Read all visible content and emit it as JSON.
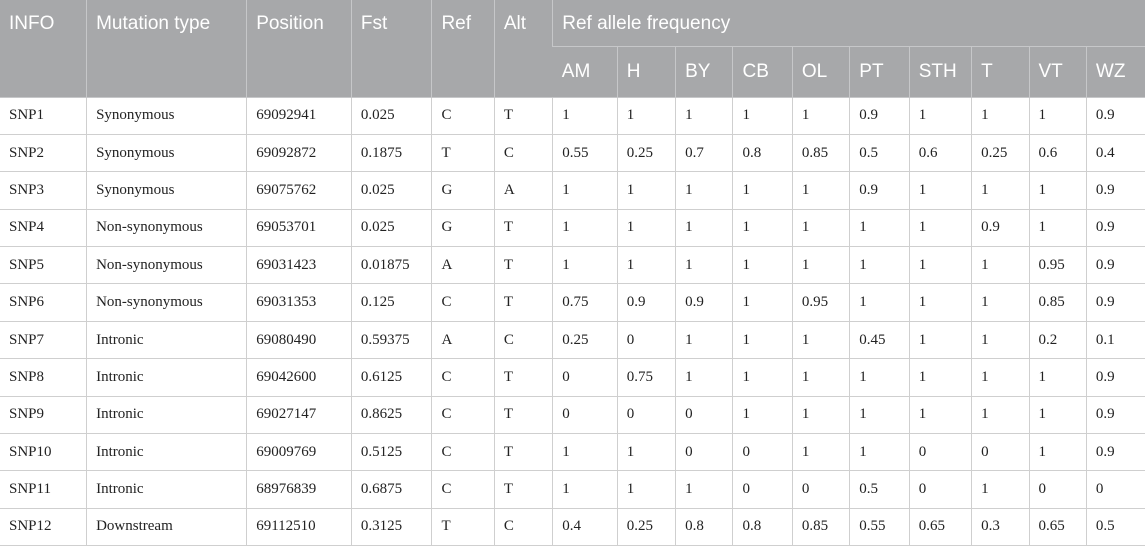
{
  "headers": {
    "info": "INFO",
    "mutation_type": "Mutation type",
    "position": "Position",
    "fst": "Fst",
    "ref": "Ref",
    "alt": "Alt",
    "freq_group": "Ref allele frequency",
    "populations": [
      "AM",
      "H",
      "BY",
      "CB",
      "OL",
      "PT",
      "STH",
      "T",
      "VT",
      "WZ"
    ]
  },
  "rows": [
    {
      "info": "SNP1",
      "mutation": "Synonymous",
      "position": "69092941",
      "fst": "0.025",
      "ref": "C",
      "alt": "T",
      "freq": [
        "1",
        "1",
        "1",
        "1",
        "1",
        "0.9",
        "1",
        "1",
        "1",
        "0.9"
      ]
    },
    {
      "info": "SNP2",
      "mutation": "Synonymous",
      "position": "69092872",
      "fst": "0.1875",
      "ref": "T",
      "alt": "C",
      "freq": [
        "0.55",
        "0.25",
        "0.7",
        "0.8",
        "0.85",
        "0.5",
        "0.6",
        "0.25",
        "0.6",
        "0.4"
      ]
    },
    {
      "info": "SNP3",
      "mutation": "Synonymous",
      "position": "69075762",
      "fst": "0.025",
      "ref": "G",
      "alt": "A",
      "freq": [
        "1",
        "1",
        "1",
        "1",
        "1",
        "0.9",
        "1",
        "1",
        "1",
        "0.9"
      ]
    },
    {
      "info": "SNP4",
      "mutation": "Non-synonymous",
      "position": "69053701",
      "fst": "0.025",
      "ref": "G",
      "alt": "T",
      "freq": [
        "1",
        "1",
        "1",
        "1",
        "1",
        "1",
        "1",
        "0.9",
        "1",
        "0.9"
      ]
    },
    {
      "info": "SNP5",
      "mutation": "Non-synonymous",
      "position": "69031423",
      "fst": "0.01875",
      "ref": "A",
      "alt": "T",
      "freq": [
        "1",
        "1",
        "1",
        "1",
        "1",
        "1",
        "1",
        "1",
        "0.95",
        "0.9"
      ]
    },
    {
      "info": "SNP6",
      "mutation": "Non-synonymous",
      "position": "69031353",
      "fst": "0.125",
      "ref": "C",
      "alt": "T",
      "freq": [
        "0.75",
        "0.9",
        "0.9",
        "1",
        "0.95",
        "1",
        "1",
        "1",
        "0.85",
        "0.9"
      ]
    },
    {
      "info": "SNP7",
      "mutation": "Intronic",
      "position": "69080490",
      "fst": "0.59375",
      "ref": "A",
      "alt": "C",
      "freq": [
        "0.25",
        "0",
        "1",
        "1",
        "1",
        "0.45",
        "1",
        "1",
        "0.2",
        "0.1"
      ]
    },
    {
      "info": "SNP8",
      "mutation": "Intronic",
      "position": "69042600",
      "fst": "0.6125",
      "ref": "C",
      "alt": "T",
      "freq": [
        "0",
        "0.75",
        "1",
        "1",
        "1",
        "1",
        "1",
        "1",
        "1",
        "0.9"
      ]
    },
    {
      "info": "SNP9",
      "mutation": "Intronic",
      "position": "69027147",
      "fst": "0.8625",
      "ref": "C",
      "alt": "T",
      "freq": [
        "0",
        "0",
        "0",
        "1",
        "1",
        "1",
        "1",
        "1",
        "1",
        "0.9"
      ]
    },
    {
      "info": "SNP10",
      "mutation": "Intronic",
      "position": "69009769",
      "fst": "0.5125",
      "ref": "C",
      "alt": "T",
      "freq": [
        "1",
        "1",
        "0",
        "0",
        "1",
        "1",
        "0",
        "0",
        "1",
        "0.9"
      ]
    },
    {
      "info": "SNP11",
      "mutation": "Intronic",
      "position": "68976839",
      "fst": "0.6875",
      "ref": "C",
      "alt": "T",
      "freq": [
        "1",
        "1",
        "1",
        "0",
        "0",
        "0.5",
        "0",
        "1",
        "0",
        "0"
      ]
    },
    {
      "info": "SNP12",
      "mutation": "Downstream",
      "position": "69112510",
      "fst": "0.3125",
      "ref": "T",
      "alt": "C",
      "freq": [
        "0.4",
        "0.25",
        "0.8",
        "0.8",
        "0.85",
        "0.55",
        "0.65",
        "0.3",
        "0.65",
        "0.5"
      ]
    }
  ],
  "colors": {
    "header_background": "#a7a8aa",
    "header_text": "#ffffff",
    "grid_line": "#cfcfcf",
    "body_text": "#222222"
  }
}
